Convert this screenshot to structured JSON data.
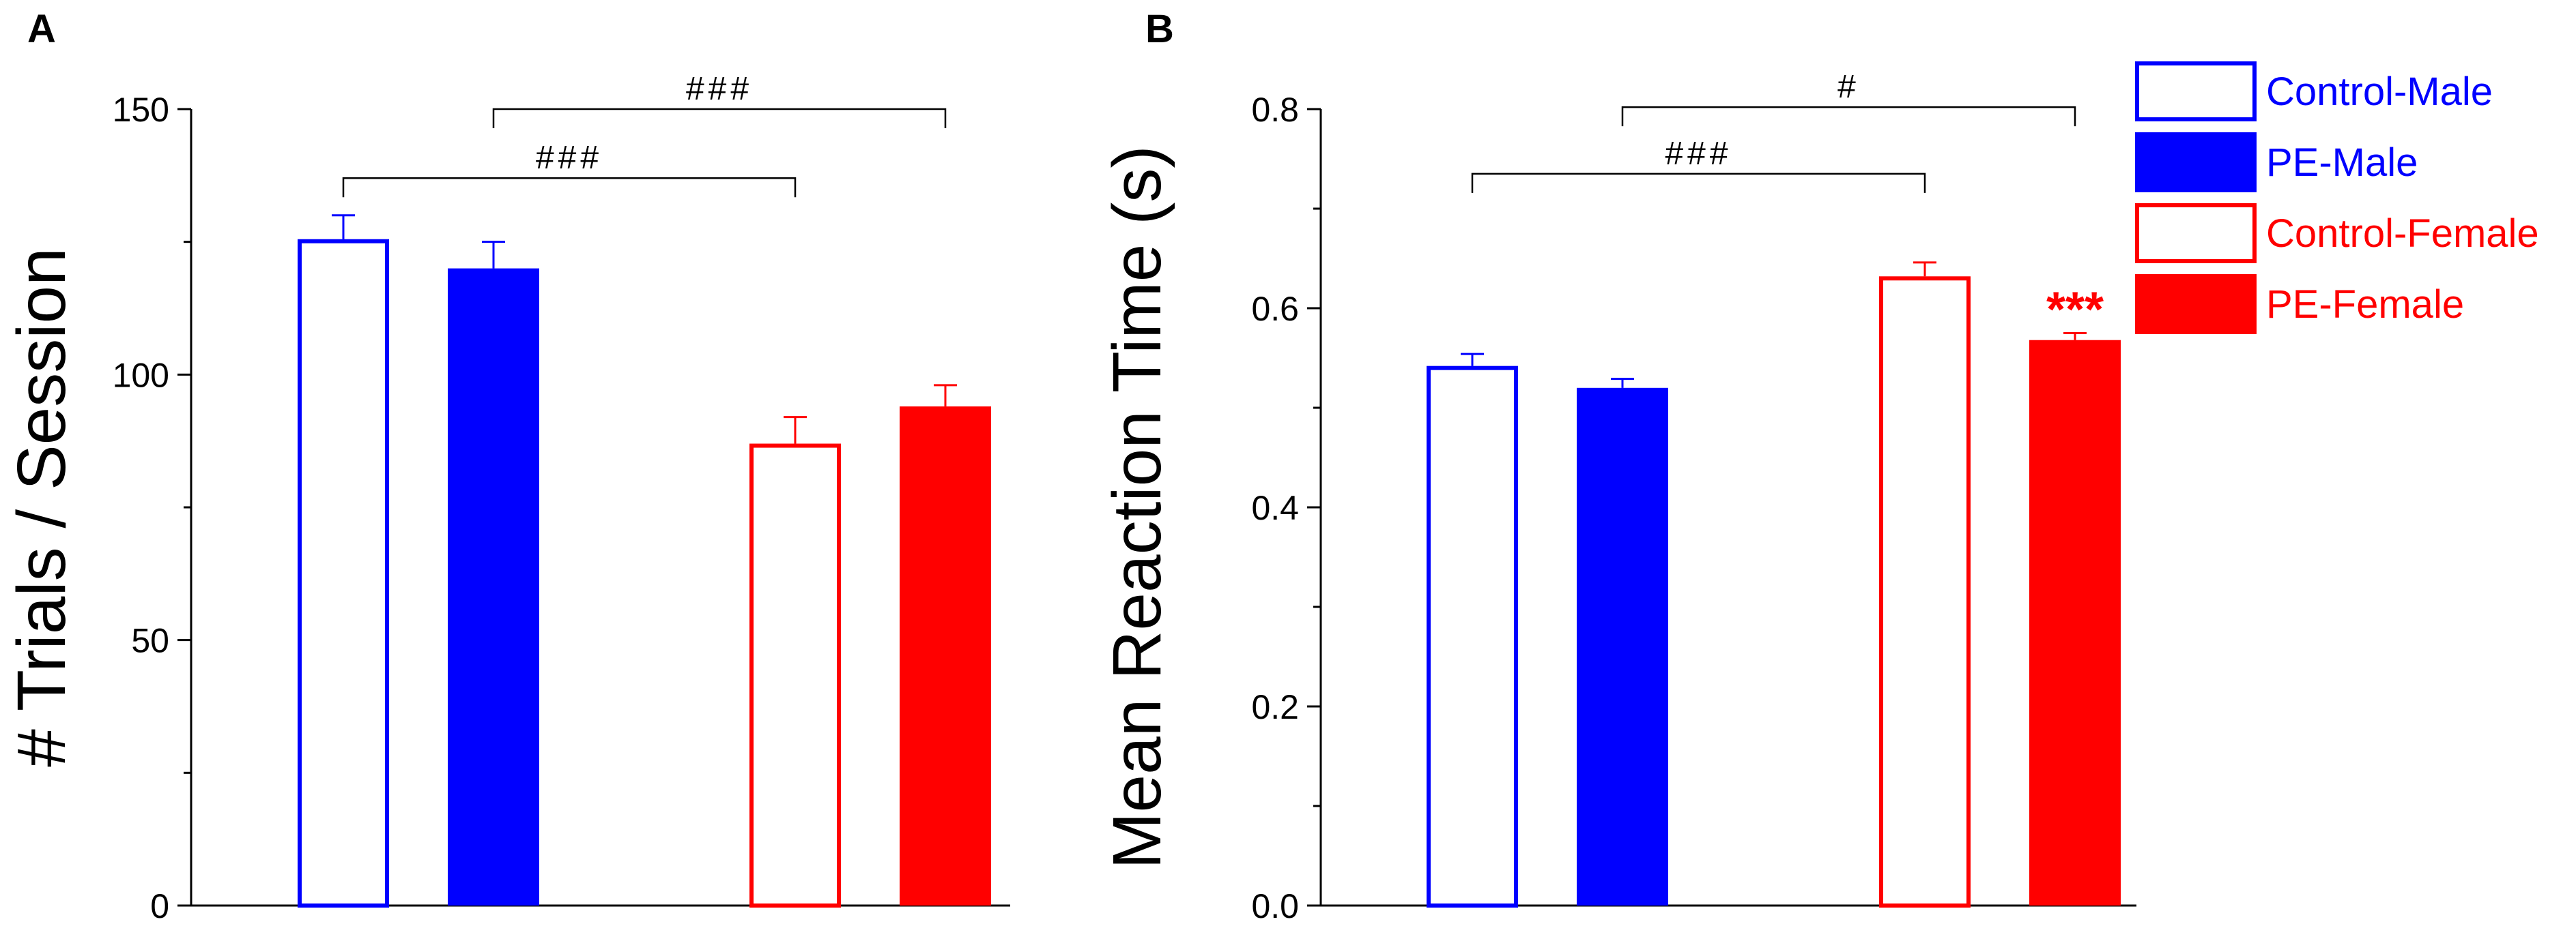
{
  "colors": {
    "male": "#0000ff",
    "male_dark": "#0000cc",
    "female": "#ff0000",
    "axis": "#000000",
    "sig": "#000000"
  },
  "chart_data": [
    {
      "type": "bar",
      "panel_label": "A",
      "ylabel": "# Trials / Session",
      "xlabel": "",
      "ylim": [
        0,
        150
      ],
      "yticks": [
        0,
        50,
        100,
        150
      ],
      "ytick_labels": [
        "0",
        "50",
        "100",
        "150"
      ],
      "categories": [
        "Control-Male",
        "PE-Male",
        "Control-Female",
        "PE-Female"
      ],
      "values": [
        125.5,
        120,
        87,
        94
      ],
      "errors": [
        4.5,
        5,
        5,
        4
      ],
      "fill": [
        "outline",
        "solid",
        "outline",
        "solid"
      ],
      "group": [
        "male",
        "male",
        "female",
        "female"
      ],
      "significance": [
        {
          "from": 0,
          "to": 2,
          "level": 137,
          "label": "###"
        },
        {
          "from": 1,
          "to": 3,
          "level": 150,
          "label": "###"
        }
      ],
      "annotations": []
    },
    {
      "type": "bar",
      "panel_label": "B",
      "ylabel": "Mean Reaction Time (s)",
      "xlabel": "",
      "ylim": [
        0,
        0.8
      ],
      "yticks": [
        0,
        0.2,
        0.4,
        0.6,
        0.8
      ],
      "ytick_labels": [
        "0.0",
        "0.2",
        "0.4",
        "0.6",
        "0.8"
      ],
      "categories": [
        "Control-Male",
        "PE-Male",
        "Control-Female",
        "PE-Female"
      ],
      "values": [
        0.542,
        0.52,
        0.632,
        0.568
      ],
      "errors": [
        0.012,
        0.009,
        0.014,
        0.007
      ],
      "fill": [
        "outline",
        "solid",
        "outline",
        "solid"
      ],
      "group": [
        "male",
        "male",
        "female",
        "female"
      ],
      "significance": [
        {
          "from": 0,
          "to": 2,
          "level": 0.735,
          "label": "###"
        },
        {
          "from": 1,
          "to": 3,
          "level": 0.802,
          "label": "#"
        }
      ],
      "annotations": [
        {
          "bar": 3,
          "label": "***",
          "color": "female"
        }
      ]
    }
  ],
  "legend": {
    "position": "top-right",
    "entries": [
      {
        "label": "Control-Male",
        "fill": "outline",
        "group": "male"
      },
      {
        "label": "PE-Male",
        "fill": "solid",
        "group": "male"
      },
      {
        "label": "Control-Female",
        "fill": "outline",
        "group": "female"
      },
      {
        "label": "PE-Female",
        "fill": "solid",
        "group": "female"
      }
    ]
  }
}
